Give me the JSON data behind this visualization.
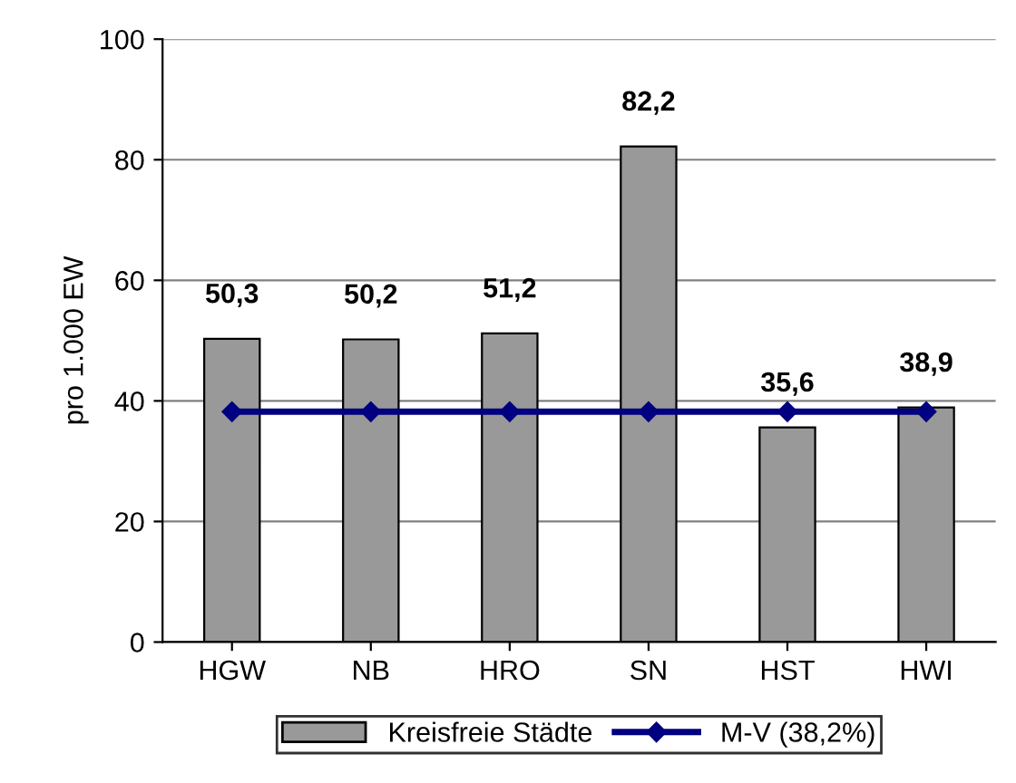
{
  "chart_data": {
    "type": "bar",
    "ylabel": "pro 1.000 EW",
    "categories": [
      "HGW",
      "NB",
      "HRO",
      "SN",
      "HST",
      "HWI"
    ],
    "series": [
      {
        "name": "Kreisfreie Städte",
        "color": "#999999",
        "values": [
          50.3,
          50.2,
          51.2,
          82.2,
          35.6,
          38.9
        ],
        "value_labels": [
          "50,3",
          "50,2",
          "51,2",
          "82,2",
          "35,6",
          "38,9"
        ]
      },
      {
        "name": "M-V (38,2%)",
        "type": "line",
        "color": "#000080",
        "values": [
          38.2,
          38.2,
          38.2,
          38.2,
          38.2,
          38.2
        ]
      }
    ],
    "marker": "diamond",
    "line_style": "solid",
    "ylim": [
      0,
      100
    ],
    "yticks": [
      0,
      20,
      40,
      60,
      80,
      100
    ],
    "grid": "y",
    "legend": "bottom"
  }
}
